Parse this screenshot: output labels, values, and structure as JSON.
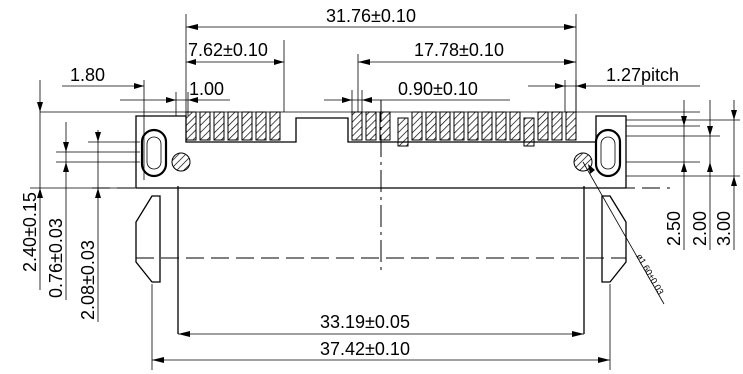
{
  "dimensions": {
    "overall_pitch_span": "31.76±0.10",
    "left_group_span": "7.62±0.10",
    "right_group_span": "17.78±0.10",
    "left_offset": "1.80",
    "lead_width": "1.00",
    "lead_thickness": "0.90±0.10",
    "pitch": "1.27pitch",
    "height_total": "2.40±0.15",
    "height_pad": "0.76±0.03",
    "height_peg": "2.08±0.03",
    "right_dim_a": "2.50",
    "right_dim_b": "2.00",
    "right_dim_c": "3.00",
    "hole_diameter": "ø1.60±0.03",
    "inner_width": "33.19±0.05",
    "outer_width": "37.42±0.10"
  }
}
